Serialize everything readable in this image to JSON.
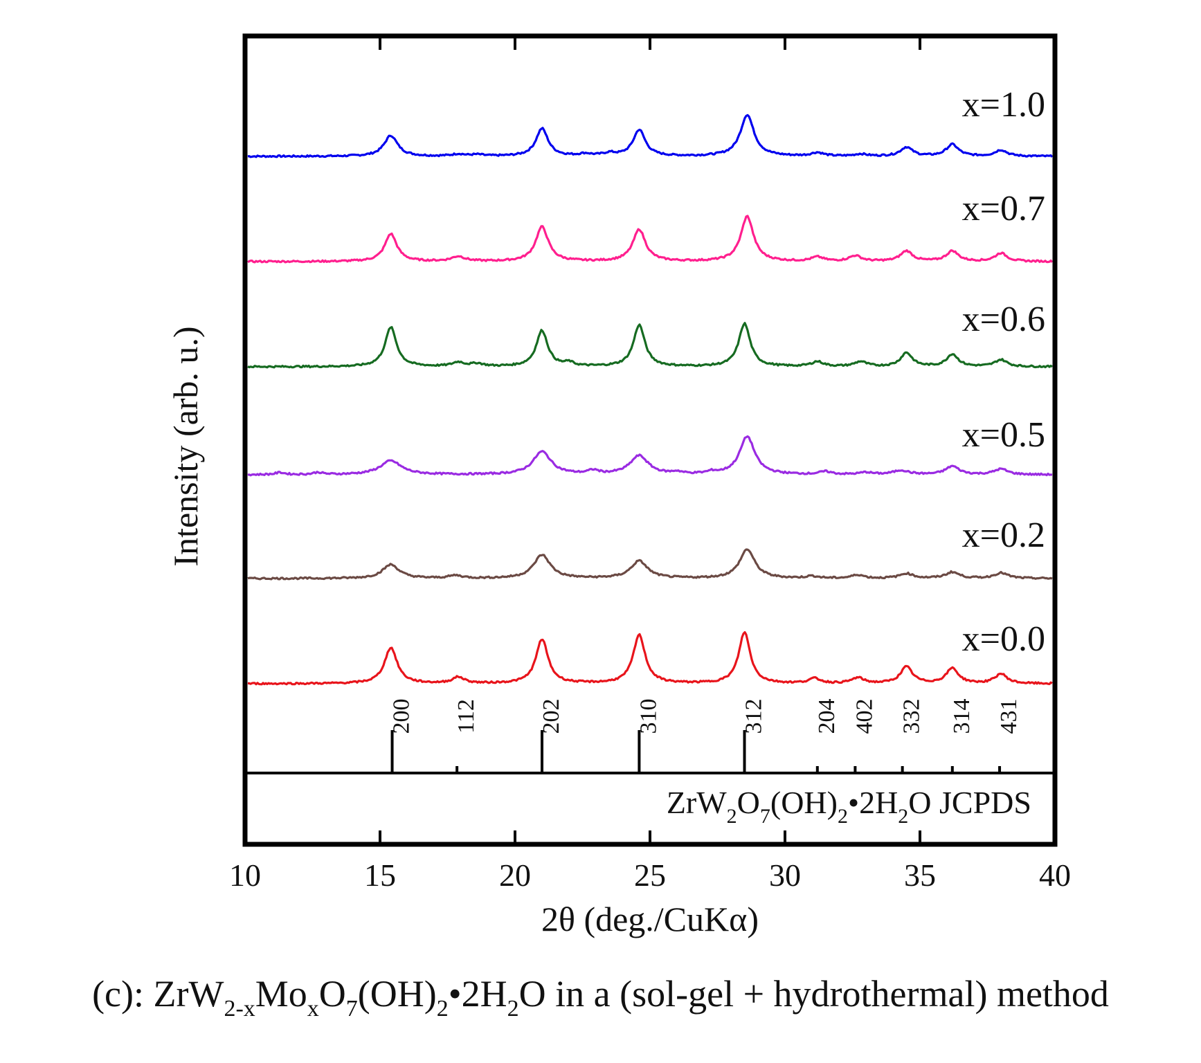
{
  "chart_data": {
    "type": "line",
    "title": "",
    "xlabel": "2θ (deg./CuKα)",
    "ylabel": "Intensity (arb. u.)",
    "xlim": [
      10,
      40
    ],
    "xticks": [
      10,
      15,
      20,
      25,
      30,
      35,
      40
    ],
    "yticks": [],
    "grid": false,
    "series": [
      {
        "name": "x=1.0",
        "color": "#0000ee",
        "peaks": [
          [
            15.4,
            30,
            0.45
          ],
          [
            17.9,
            3,
            0.4
          ],
          [
            18.6,
            2,
            0.4
          ],
          [
            21.0,
            40,
            0.4
          ],
          [
            22.6,
            3,
            0.4
          ],
          [
            23.5,
            4,
            0.4
          ],
          [
            24.6,
            38,
            0.4
          ],
          [
            28.6,
            60,
            0.45
          ],
          [
            31.2,
            5,
            0.4
          ],
          [
            32.8,
            3,
            0.4
          ],
          [
            34.5,
            13,
            0.4
          ],
          [
            36.2,
            17,
            0.4
          ],
          [
            38.0,
            9,
            0.4
          ]
        ]
      },
      {
        "name": "x=0.7",
        "color": "#ff1f8e",
        "peaks": [
          [
            15.4,
            40,
            0.4
          ],
          [
            17.9,
            7,
            0.45
          ],
          [
            21.0,
            50,
            0.42
          ],
          [
            24.6,
            46,
            0.42
          ],
          [
            28.6,
            65,
            0.42
          ],
          [
            31.2,
            6,
            0.4
          ],
          [
            32.6,
            8,
            0.4
          ],
          [
            34.5,
            15,
            0.4
          ],
          [
            36.2,
            15,
            0.4
          ],
          [
            38.0,
            12,
            0.4
          ]
        ]
      },
      {
        "name": "x=0.6",
        "color": "#166b21",
        "peaks": [
          [
            15.4,
            57,
            0.38
          ],
          [
            17.9,
            6,
            0.4
          ],
          [
            18.6,
            4,
            0.4
          ],
          [
            21.0,
            52,
            0.38
          ],
          [
            22.0,
            5,
            0.3
          ],
          [
            24.6,
            60,
            0.38
          ],
          [
            28.5,
            62,
            0.38
          ],
          [
            31.2,
            7,
            0.4
          ],
          [
            32.8,
            7,
            0.4
          ],
          [
            34.5,
            20,
            0.38
          ],
          [
            36.2,
            18,
            0.38
          ],
          [
            38.0,
            10,
            0.4
          ]
        ]
      },
      {
        "name": "x=0.5",
        "color": "#9a2be2",
        "peaks": [
          [
            11.3,
            3,
            0.3
          ],
          [
            12.7,
            3,
            0.3
          ],
          [
            15.4,
            20,
            0.7
          ],
          [
            21.0,
            33,
            0.6
          ],
          [
            22.9,
            5,
            0.35
          ],
          [
            24.6,
            27,
            0.6
          ],
          [
            26.0,
            3,
            0.3
          ],
          [
            27.3,
            3,
            0.3
          ],
          [
            28.6,
            55,
            0.5
          ],
          [
            31.5,
            4,
            0.4
          ],
          [
            33.0,
            3,
            0.4
          ],
          [
            34.3,
            6,
            0.5
          ],
          [
            36.2,
            12,
            0.45
          ],
          [
            38.0,
            8,
            0.45
          ]
        ]
      },
      {
        "name": "x=0.2",
        "color": "#6b4a44",
        "peaks": [
          [
            15.4,
            20,
            0.55
          ],
          [
            17.8,
            4,
            0.45
          ],
          [
            21.0,
            34,
            0.55
          ],
          [
            24.6,
            25,
            0.55
          ],
          [
            28.6,
            42,
            0.5
          ],
          [
            31.0,
            3,
            0.4
          ],
          [
            32.7,
            5,
            0.4
          ],
          [
            34.5,
            7,
            0.45
          ],
          [
            36.2,
            9,
            0.45
          ],
          [
            38.0,
            8,
            0.45
          ]
        ]
      },
      {
        "name": "x=0.0",
        "color": "#e8141b",
        "peaks": [
          [
            15.4,
            52,
            0.42
          ],
          [
            17.9,
            9,
            0.4
          ],
          [
            21.0,
            64,
            0.4
          ],
          [
            24.6,
            70,
            0.4
          ],
          [
            28.5,
            74,
            0.38
          ],
          [
            31.1,
            7,
            0.4
          ],
          [
            32.7,
            8,
            0.4
          ],
          [
            34.5,
            24,
            0.4
          ],
          [
            36.2,
            22,
            0.4
          ],
          [
            38.0,
            14,
            0.4
          ]
        ]
      }
    ],
    "reference": {
      "name": "ZrW2O7(OH)2•2H2O JCPDS",
      "lines": [
        {
          "x": 15.45,
          "hkl": "200",
          "intensity": 55
        },
        {
          "x": 17.85,
          "hkl": "112",
          "intensity": 6
        },
        {
          "x": 21.0,
          "hkl": "202",
          "intensity": 58
        },
        {
          "x": 24.6,
          "hkl": "310",
          "intensity": 60
        },
        {
          "x": 28.5,
          "hkl": "312",
          "intensity": 60
        },
        {
          "x": 31.2,
          "hkl": "204",
          "intensity": 8
        },
        {
          "x": 32.6,
          "hkl": "402",
          "intensity": 6
        },
        {
          "x": 34.35,
          "hkl": "332",
          "intensity": 12
        },
        {
          "x": 36.2,
          "hkl": "314",
          "intensity": 14
        },
        {
          "x": 37.95,
          "hkl": "431",
          "intensity": 10
        }
      ]
    }
  },
  "reference_label": {
    "zr_w": "ZrW",
    "sub_2": "2",
    "o": "O",
    "sub_7": "7",
    "oh": "(OH)",
    "sub_2b": "2",
    "dot_2h": "•2H",
    "sub_2c": "2",
    "o_jcpds": "O JCPDS"
  },
  "caption": {
    "part1": "(c): ZrW",
    "sub1": "2-x",
    "part2": "Mo",
    "sub2": "x",
    "part3": "O",
    "sub3": "7",
    "part4": "(OH)",
    "sub4": "2",
    "part5": "•2H",
    "sub5": "2",
    "part6": "O in a (sol-gel + hydrothermal) method"
  }
}
